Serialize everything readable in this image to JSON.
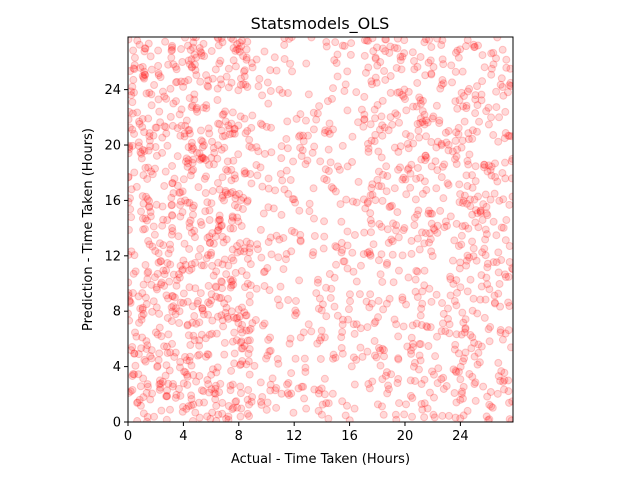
{
  "chart_data": {
    "type": "scatter",
    "title": "Statsmodels_OLS",
    "xlabel": "Actual - Time Taken (Hours)",
    "ylabel": "Prediction - Time Taken (Hours)",
    "xlim": [
      0,
      27.8
    ],
    "ylim": [
      0,
      27.8
    ],
    "xticks": [
      "0",
      "4",
      "8",
      "12",
      "16",
      "20",
      "24"
    ],
    "yticks": [
      "0",
      "4",
      "8",
      "12",
      "16",
      "20",
      "24"
    ],
    "grid": false,
    "legend": "none",
    "point_color": "#ff0000",
    "point_alpha": 0.15,
    "point_count": 1800,
    "density_note_bands": [
      {
        "x_range": [
          0,
          9
        ],
        "relative_density": 1.6
      },
      {
        "x_range": [
          9,
          17
        ],
        "relative_density": 0.55
      },
      {
        "x_range": [
          17,
          27.8
        ],
        "relative_density": 1.0
      }
    ]
  }
}
